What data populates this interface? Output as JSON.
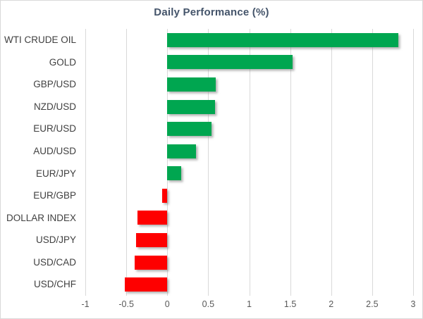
{
  "chart_data": {
    "type": "bar",
    "orientation": "horizontal",
    "title": "Daily Performance (%)",
    "categories": [
      "WTI CRUDE OIL",
      "GOLD",
      "GBP/USD",
      "NZD/USD",
      "EUR/USD",
      "AUD/USD",
      "EUR/JPY",
      "EUR/GBP",
      "DOLLAR INDEX",
      "USD/JPY",
      "USD/CAD",
      "USD/CHF"
    ],
    "values": [
      2.82,
      1.53,
      0.59,
      0.58,
      0.54,
      0.35,
      0.17,
      -0.06,
      -0.36,
      -0.38,
      -0.4,
      -0.52
    ],
    "xlim": [
      -1,
      3
    ],
    "xticks": [
      -1,
      -0.5,
      0,
      0.5,
      1,
      1.5,
      2,
      2.5,
      3
    ],
    "tick_labels": [
      "-1",
      "-0.5",
      "0",
      "0.5",
      "1",
      "1.5",
      "2",
      "2.5",
      "3"
    ],
    "grid": true,
    "legend": false,
    "colors": {
      "positive": "#00a650",
      "negative": "#fe0000",
      "gridline": "#d9d9d9",
      "title": "#44546a",
      "category_label": "#404040",
      "tick_label": "#595959",
      "border": "#d9d9d9"
    }
  }
}
